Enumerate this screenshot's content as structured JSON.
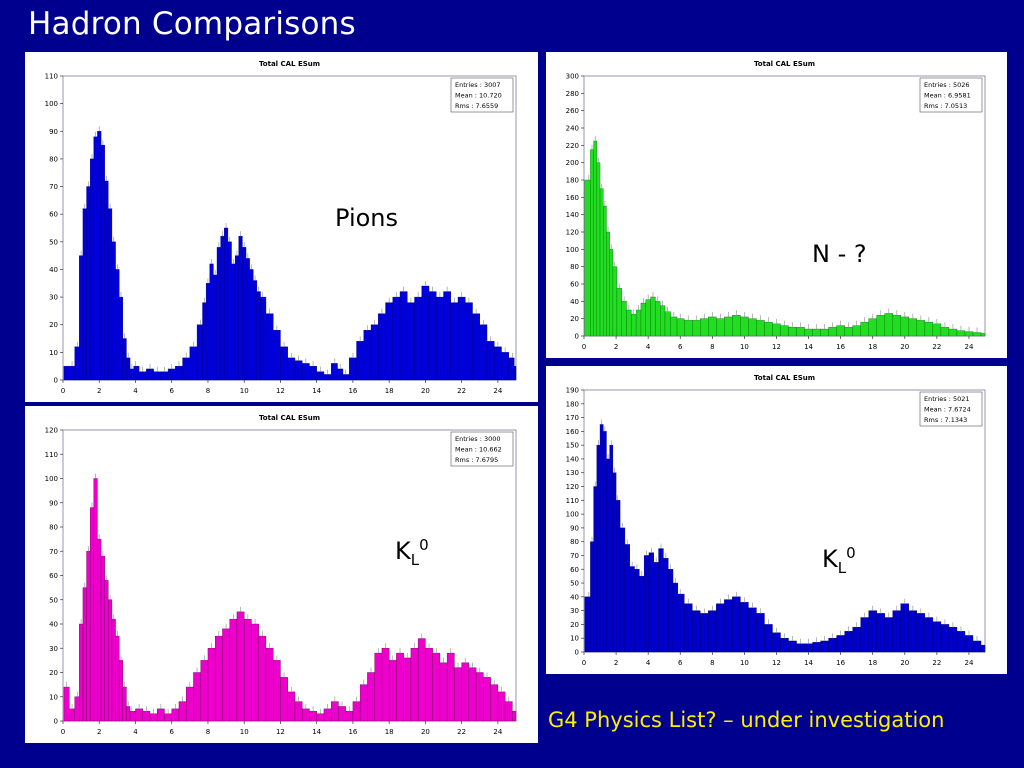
{
  "slide": {
    "title": "Hadron Comparisons",
    "footer": "G4 Physics List? – under investigation"
  },
  "colors": {
    "background": "#00008f",
    "title_text": "#ffffff",
    "footer_text": "#ffee00"
  },
  "chart_data": [
    {
      "type": "bar",
      "title": "Total CAL ESum",
      "annotation": "Pions",
      "annotation_sub": "",
      "annotation_sup": "",
      "color": "#0000d8",
      "edge_color": "#000080",
      "stats": [
        {
          "label": "Entries",
          "value": "3007"
        },
        {
          "label": "Mean",
          "value": "10.720"
        },
        {
          "label": "Rms",
          "value": "7.6559"
        }
      ],
      "xlim": [
        0,
        25
      ],
      "ylim": [
        0,
        110
      ],
      "xticks": [
        0,
        2,
        4,
        6,
        8,
        10,
        12,
        14,
        16,
        18,
        20,
        22,
        24
      ],
      "yticks": [
        0,
        10,
        20,
        30,
        40,
        50,
        60,
        70,
        80,
        90,
        100,
        110
      ],
      "x": [
        0.5,
        0.8,
        1.0,
        1.2,
        1.4,
        1.6,
        1.8,
        2.0,
        2.2,
        2.4,
        2.6,
        2.8,
        3.0,
        3.2,
        3.4,
        3.6,
        3.8,
        4.0,
        4.4,
        4.8,
        5.2,
        5.6,
        6.0,
        6.4,
        6.8,
        7.2,
        7.6,
        7.8,
        8.0,
        8.2,
        8.4,
        8.6,
        8.8,
        9.0,
        9.2,
        9.4,
        9.6,
        9.8,
        10.0,
        10.2,
        10.4,
        10.6,
        10.8,
        11.0,
        11.4,
        11.8,
        12.2,
        12.6,
        13.0,
        13.4,
        13.8,
        14.2,
        14.6,
        15.0,
        15.3,
        15.6,
        16.0,
        16.4,
        16.8,
        17.2,
        17.6,
        18.0,
        18.4,
        18.8,
        19.2,
        19.6,
        20.0,
        20.4,
        20.8,
        21.2,
        21.6,
        22.0,
        22.4,
        22.8,
        23.2,
        23.6,
        24.0,
        24.4,
        24.8,
        25.0
      ],
      "values": [
        5,
        12,
        45,
        62,
        70,
        80,
        88,
        90,
        85,
        72,
        62,
        50,
        40,
        30,
        15,
        8,
        4,
        5,
        3,
        4,
        3,
        3,
        4,
        5,
        8,
        12,
        20,
        28,
        35,
        42,
        38,
        48,
        52,
        55,
        50,
        42,
        45,
        52,
        48,
        44,
        40,
        36,
        32,
        30,
        24,
        18,
        12,
        8,
        7,
        6,
        5,
        3,
        2,
        6,
        4,
        2,
        8,
        14,
        18,
        20,
        24,
        28,
        30,
        32,
        28,
        30,
        34,
        32,
        30,
        32,
        28,
        30,
        28,
        24,
        20,
        14,
        12,
        10,
        8,
        5
      ]
    },
    {
      "type": "bar",
      "title": "Total CAL ESum",
      "annotation": "N - ?",
      "annotation_sub": "",
      "annotation_sup": "",
      "color": "#22dd22",
      "edge_color": "#007700",
      "stats": [
        {
          "label": "Entries",
          "value": "5026"
        },
        {
          "label": "Mean",
          "value": "6.9581"
        },
        {
          "label": "Rms",
          "value": "7.0513"
        }
      ],
      "xlim": [
        0,
        25
      ],
      "ylim": [
        0,
        300
      ],
      "xticks": [
        0,
        2,
        4,
        6,
        8,
        10,
        12,
        14,
        16,
        18,
        20,
        22,
        24
      ],
      "yticks": [
        0,
        20,
        40,
        60,
        80,
        100,
        120,
        140,
        160,
        180,
        200,
        220,
        240,
        260,
        280,
        300
      ],
      "x": [
        0.3,
        0.5,
        0.7,
        0.9,
        1.1,
        1.3,
        1.5,
        1.7,
        1.9,
        2.2,
        2.5,
        2.8,
        3.1,
        3.4,
        3.7,
        4.0,
        4.3,
        4.6,
        4.9,
        5.2,
        5.6,
        6.0,
        6.5,
        7.0,
        7.5,
        8.0,
        8.5,
        9.0,
        9.5,
        10.0,
        10.5,
        11.0,
        11.5,
        12.0,
        12.5,
        13.0,
        13.5,
        14.0,
        14.5,
        15.0,
        15.5,
        16.0,
        16.5,
        17.0,
        17.5,
        18.0,
        18.5,
        19.0,
        19.5,
        20.0,
        20.5,
        21.0,
        21.5,
        22.0,
        22.5,
        23.0,
        23.5,
        24.0,
        24.5,
        25.0
      ],
      "values": [
        180,
        215,
        225,
        200,
        170,
        150,
        120,
        100,
        80,
        55,
        40,
        30,
        25,
        30,
        38,
        42,
        45,
        40,
        35,
        28,
        22,
        20,
        18,
        18,
        20,
        22,
        20,
        22,
        24,
        22,
        20,
        18,
        16,
        14,
        12,
        10,
        10,
        8,
        8,
        8,
        10,
        12,
        10,
        12,
        16,
        20,
        24,
        26,
        24,
        22,
        20,
        18,
        16,
        14,
        10,
        8,
        6,
        5,
        4,
        3
      ]
    },
    {
      "type": "bar",
      "title": "Total CAL ESum",
      "annotation": "K",
      "annotation_sub": "L",
      "annotation_sup": "0",
      "color": "#ee00cc",
      "edge_color": "#660055",
      "stats": [
        {
          "label": "Entries",
          "value": "3000"
        },
        {
          "label": "Mean",
          "value": "10.662"
        },
        {
          "label": "Rms",
          "value": "7.6795"
        }
      ],
      "xlim": [
        0,
        25
      ],
      "ylim": [
        0,
        120
      ],
      "xticks": [
        0,
        2,
        4,
        6,
        8,
        10,
        12,
        14,
        16,
        18,
        20,
        22,
        24
      ],
      "yticks": [
        0,
        10,
        20,
        30,
        40,
        50,
        60,
        70,
        80,
        90,
        100,
        110,
        120
      ],
      "x": [
        0.2,
        0.5,
        0.8,
        1.0,
        1.2,
        1.4,
        1.6,
        1.8,
        2.0,
        2.2,
        2.4,
        2.6,
        2.8,
        3.0,
        3.2,
        3.4,
        3.6,
        3.8,
        4.2,
        4.6,
        5.0,
        5.4,
        5.8,
        6.2,
        6.6,
        7.0,
        7.4,
        7.8,
        8.2,
        8.6,
        9.0,
        9.4,
        9.8,
        10.2,
        10.6,
        11.0,
        11.4,
        11.8,
        12.2,
        12.6,
        13.0,
        13.4,
        13.8,
        14.2,
        14.6,
        15.0,
        15.4,
        15.8,
        16.2,
        16.6,
        17.0,
        17.4,
        17.8,
        18.2,
        18.6,
        19.0,
        19.4,
        19.8,
        20.2,
        20.6,
        21.0,
        21.4,
        21.8,
        22.2,
        22.6,
        23.0,
        23.4,
        23.8,
        24.2,
        24.6,
        25.0
      ],
      "values": [
        14,
        5,
        10,
        40,
        55,
        70,
        88,
        100,
        75,
        68,
        58,
        50,
        42,
        35,
        25,
        14,
        6,
        4,
        5,
        4,
        3,
        5,
        3,
        5,
        8,
        14,
        20,
        25,
        30,
        35,
        38,
        42,
        45,
        42,
        40,
        35,
        30,
        25,
        18,
        12,
        8,
        5,
        4,
        3,
        5,
        8,
        6,
        4,
        8,
        15,
        20,
        28,
        30,
        25,
        28,
        26,
        30,
        34,
        30,
        28,
        24,
        28,
        22,
        24,
        22,
        20,
        18,
        15,
        12,
        8,
        4
      ]
    },
    {
      "type": "bar",
      "title": "Total CAL ESum",
      "annotation": "K",
      "annotation_sub": "L",
      "annotation_sup": "0",
      "color": "#0000cc",
      "edge_color": "#000066",
      "stats": [
        {
          "label": "Entries",
          "value": "5021"
        },
        {
          "label": "Mean",
          "value": "7.6724"
        },
        {
          "label": "Rms",
          "value": "7.1343"
        }
      ],
      "xlim": [
        0,
        25
      ],
      "ylim": [
        0,
        190
      ],
      "xticks": [
        0,
        2,
        4,
        6,
        8,
        10,
        12,
        14,
        16,
        18,
        20,
        22,
        24
      ],
      "yticks": [
        0,
        10,
        20,
        30,
        40,
        50,
        60,
        70,
        80,
        90,
        100,
        110,
        120,
        130,
        140,
        150,
        160,
        170,
        180,
        190
      ],
      "x": [
        0.3,
        0.5,
        0.7,
        0.9,
        1.1,
        1.3,
        1.5,
        1.7,
        1.9,
        2.1,
        2.4,
        2.7,
        3.0,
        3.3,
        3.6,
        3.9,
        4.2,
        4.5,
        4.8,
        5.1,
        5.4,
        5.7,
        6.0,
        6.5,
        7.0,
        7.5,
        8.0,
        8.5,
        9.0,
        9.5,
        10.0,
        10.5,
        11.0,
        11.5,
        12.0,
        12.5,
        13.0,
        13.5,
        14.0,
        14.5,
        15.0,
        15.5,
        16.0,
        16.5,
        17.0,
        17.5,
        18.0,
        18.5,
        19.0,
        19.5,
        20.0,
        20.5,
        21.0,
        21.5,
        22.0,
        22.5,
        23.0,
        23.5,
        24.0,
        24.5,
        25.0
      ],
      "values": [
        40,
        80,
        120,
        150,
        165,
        160,
        140,
        150,
        130,
        110,
        90,
        78,
        62,
        60,
        55,
        70,
        72,
        65,
        75,
        68,
        60,
        50,
        42,
        35,
        30,
        28,
        30,
        35,
        38,
        40,
        36,
        32,
        28,
        20,
        14,
        10,
        8,
        6,
        6,
        7,
        8,
        10,
        12,
        15,
        18,
        25,
        30,
        28,
        25,
        30,
        35,
        30,
        28,
        25,
        22,
        20,
        18,
        15,
        12,
        8,
        5
      ]
    }
  ]
}
